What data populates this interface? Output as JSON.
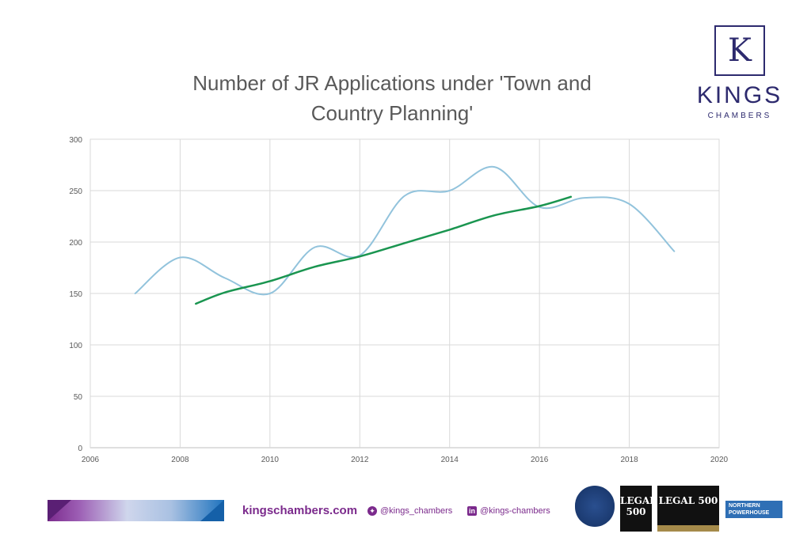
{
  "slide": {
    "title_line1": "Number of JR Applications under 'Town and",
    "title_line2": "Country Planning'"
  },
  "logo": {
    "letter": "K",
    "name": "KINGS",
    "subtitle": "CHAMBERS",
    "color": "#2d2a6e"
  },
  "footer": {
    "website": "kingschambers.com",
    "twitter": "@kings_chambers",
    "twitter_icon": "twitter-bird-icon",
    "linkedin": "@kings-chambers",
    "linkedin_icon": "linkedin-icon",
    "accent": "#7b2a8c",
    "badges": {
      "legal500_a": "LEGAL 500",
      "legal500_b": "LEGAL 500",
      "northern_powerhouse": "NORTHERN POWERHOUSE"
    }
  },
  "chart_data": {
    "type": "line",
    "title": "Number of JR Applications under 'Town and Country Planning'",
    "xlim": [
      2006,
      2020
    ],
    "ylim": [
      0,
      300
    ],
    "x_ticks": [
      "2006",
      "2008",
      "2010",
      "2012",
      "2014",
      "2016",
      "2018",
      "2020"
    ],
    "y_ticks": [
      "0",
      "50",
      "100",
      "150",
      "200",
      "250",
      "300"
    ],
    "grid": true,
    "series": [
      {
        "color": "#92c3dc",
        "smooth": true,
        "x": [
          2007,
          2008,
          2009,
          2010,
          2011,
          2012,
          2013,
          2014,
          2015,
          2016,
          2017,
          2018,
          2019
        ],
        "y": [
          150,
          185,
          165,
          150,
          195,
          187,
          245,
          250,
          273,
          234,
          243,
          237,
          191
        ]
      },
      {
        "color": "#1a9550",
        "smooth": true,
        "trend": true,
        "x": [
          2008.35,
          2009,
          2010,
          2011,
          2012,
          2013,
          2014,
          2015,
          2016,
          2016.7
        ],
        "y": [
          140,
          151,
          162,
          176,
          186,
          199,
          212,
          226,
          235,
          244
        ]
      }
    ]
  }
}
